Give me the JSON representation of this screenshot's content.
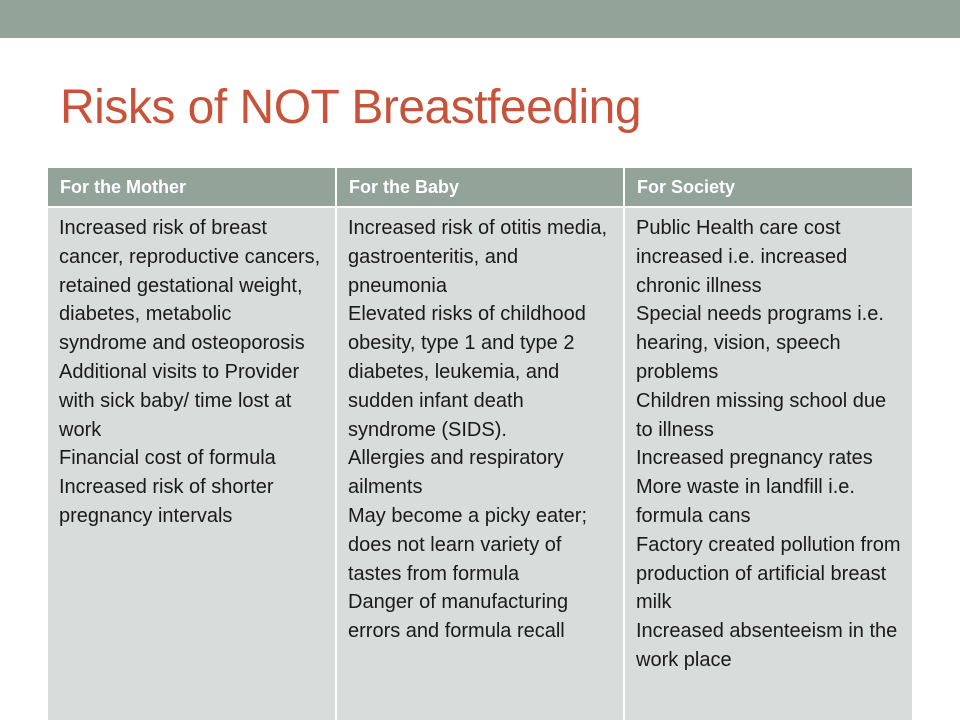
{
  "slide": {
    "title": "Risks of NOT Breastfeeding"
  },
  "table": {
    "headers": [
      "For the Mother",
      "For the Baby",
      "For Society"
    ],
    "columns": [
      [
        "Increased risk of breast cancer, reproductive cancers, retained gestational weight, diabetes, metabolic syndrome and osteoporosis",
        "Additional visits to Provider with sick baby/ time lost at work",
        "Financial cost of formula",
        "Increased risk of shorter pregnancy intervals"
      ],
      [
        "Increased risk of otitis media, gastroenteritis, and pneumonia",
        "Elevated risks of childhood obesity, type 1 and type 2 diabetes, leukemia, and sudden infant death syndrome (SIDS).",
        "Allergies and respiratory ailments",
        "May become a picky eater; does not learn variety of tastes from formula",
        "Danger of manufacturing errors and formula recall"
      ],
      [
        "Public Health care cost increased i.e. increased chronic illness",
        "Special needs programs i.e. hearing, vision, speech problems",
        "Children missing school due to illness",
        "Increased pregnancy rates",
        "More waste in landfill i.e. formula cans",
        "Factory created pollution from production of artificial breast milk",
        "Increased absenteeism in the work place"
      ]
    ]
  },
  "colors": {
    "accent_bar": "#94a39a",
    "title": "#c6533a",
    "header_bg": "#94a39a",
    "cell_bg": "#d8dcda"
  }
}
